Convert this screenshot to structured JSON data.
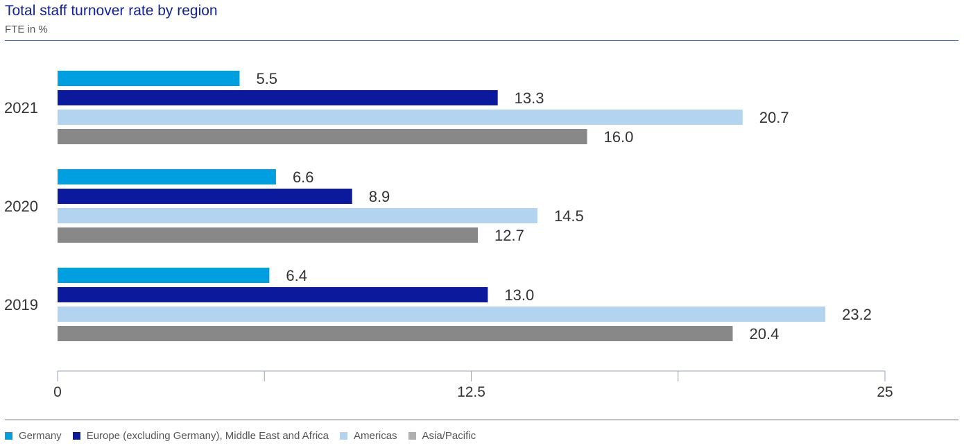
{
  "title": "Total staff turnover rate by region",
  "subtitle": "FTE in %",
  "chart_data": {
    "type": "bar",
    "orientation": "horizontal",
    "categories": [
      "2021",
      "2020",
      "2019"
    ],
    "series": [
      {
        "name": "Germany",
        "color": "#00a0e0",
        "values": [
          5.5,
          6.6,
          6.4
        ]
      },
      {
        "name": "Europe (excluding Germany), Middle East and Africa",
        "color": "#0b1a9c",
        "values": [
          13.3,
          8.9,
          13.0
        ]
      },
      {
        "name": "Americas",
        "color": "#b3d4f0",
        "values": [
          20.7,
          14.5,
          23.2
        ]
      },
      {
        "name": "Asia/Pacific",
        "color": "#888888",
        "values": [
          16.0,
          12.7,
          20.4
        ]
      }
    ],
    "value_labels": [
      [
        "5.5",
        "6.6",
        "6.4"
      ],
      [
        "13.3",
        "8.9",
        "13.0"
      ],
      [
        "20.7",
        "14.5",
        "23.2"
      ],
      [
        "16.0",
        "12.7",
        "20.4"
      ]
    ],
    "xlim": [
      0,
      25
    ],
    "x_ticks": [
      0,
      6.25,
      12.5,
      18.75,
      25
    ],
    "x_tick_labels": [
      "0",
      "",
      "12.5",
      "",
      "25"
    ],
    "grid": false,
    "legend_position": "bottom-left"
  }
}
